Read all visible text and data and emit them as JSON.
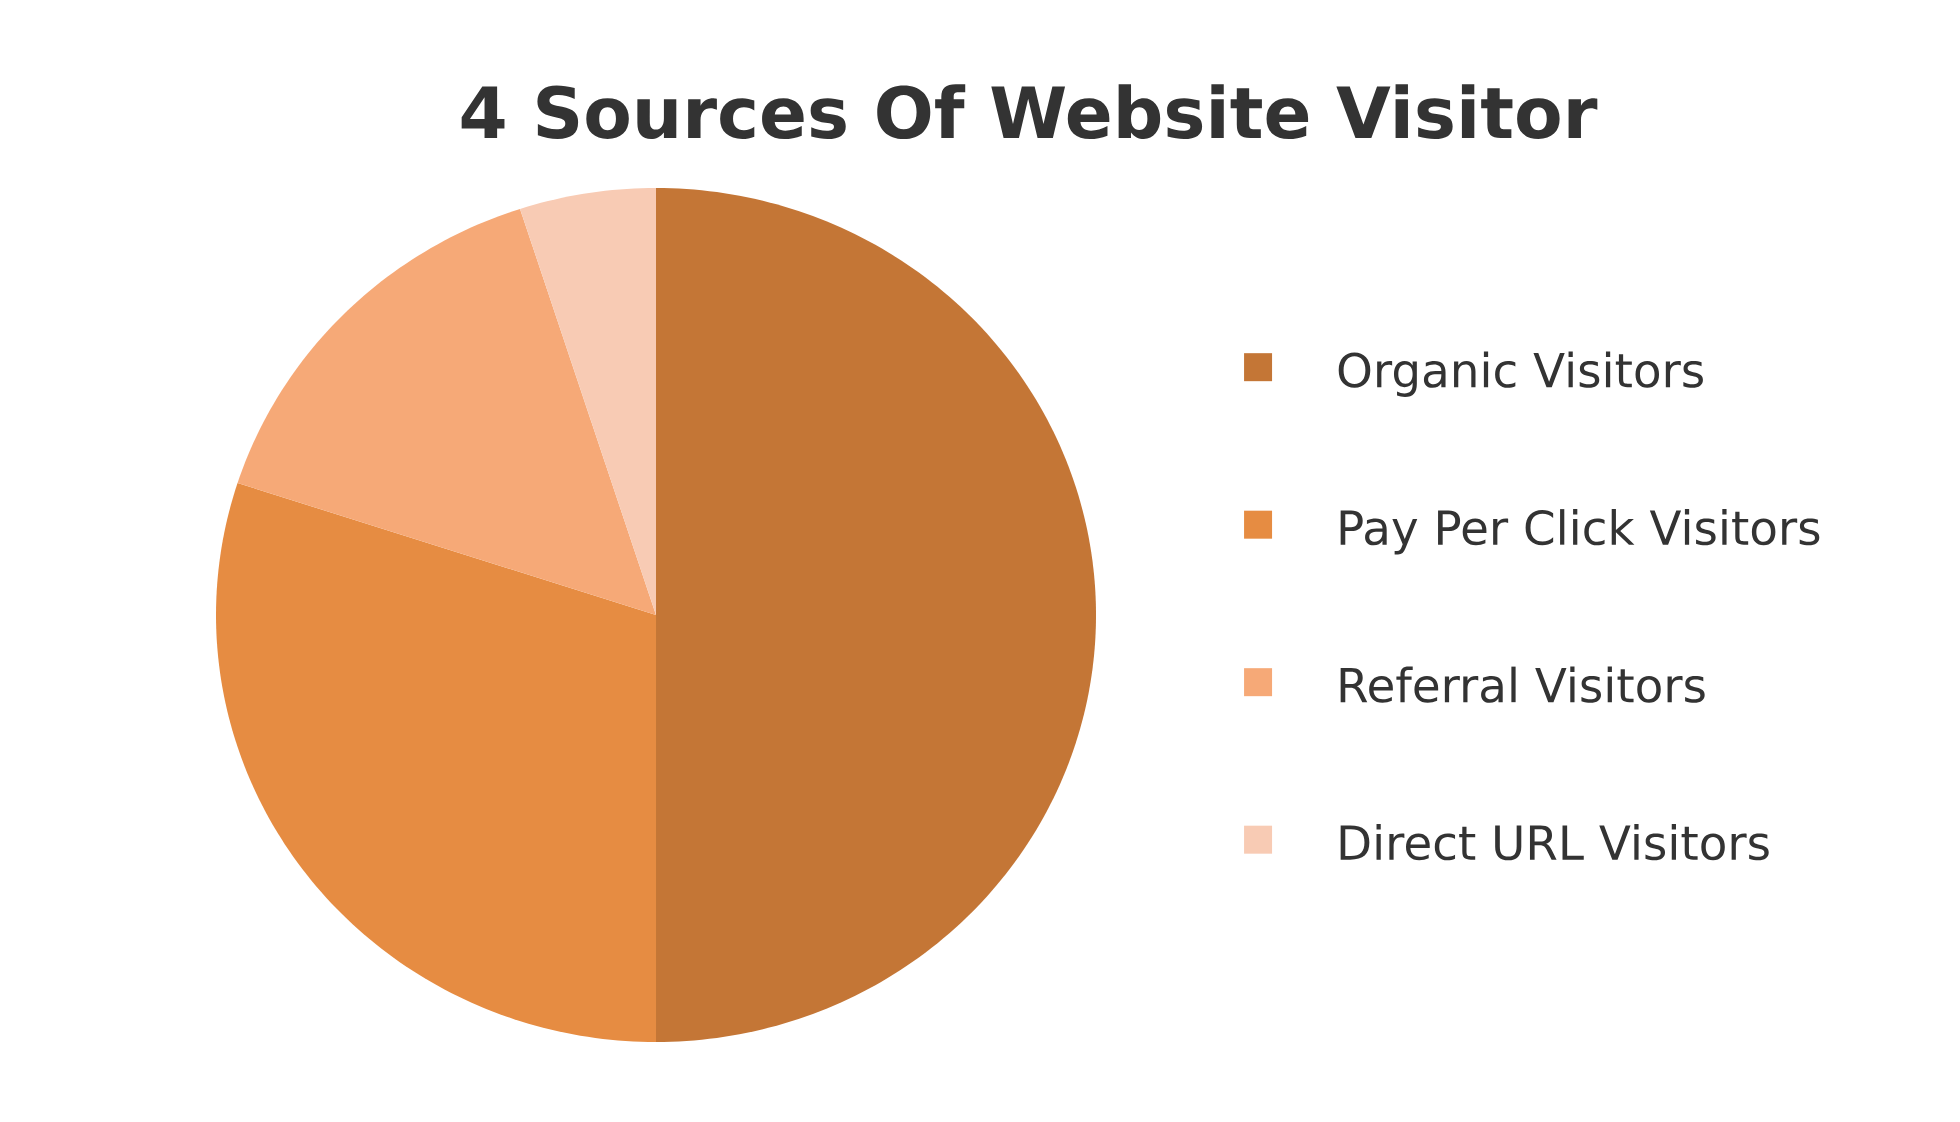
{
  "chart_data": {
    "type": "pie",
    "title": "4 Sources Of Website Visitor",
    "categories": [
      "Organic Visitors",
      "Pay Per Click Visitors",
      "Referral Visitors",
      "Direct URL Visitors"
    ],
    "values": [
      50,
      30,
      15,
      5
    ],
    "colors": [
      "#c47636",
      "#e68c42",
      "#f6a977",
      "#f8cbb4"
    ],
    "legend": "right"
  }
}
